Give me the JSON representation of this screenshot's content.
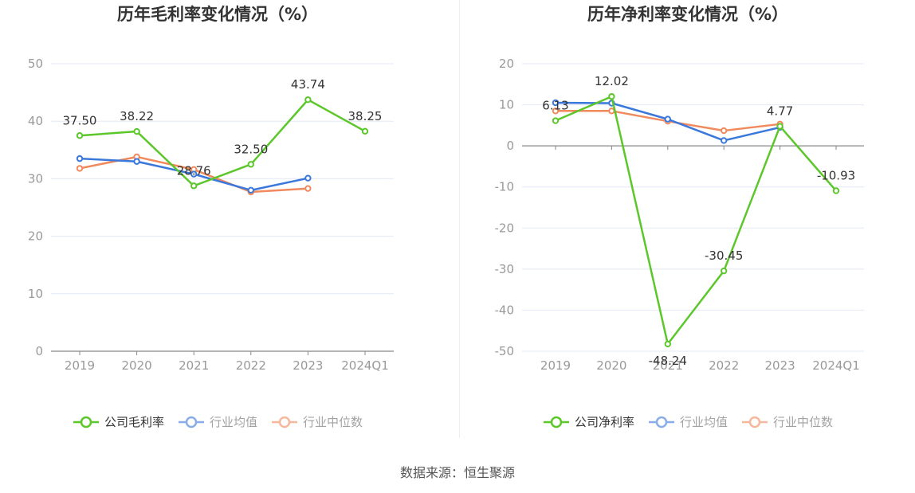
{
  "colors": {
    "company": "#5cc72b",
    "industry_avg": "#3b78dc",
    "industry_median": "#f08a5d",
    "grid": "#e3e8f5",
    "axis": "#888888",
    "tick_text": "#999999",
    "label_text": "#333333"
  },
  "source": "数据来源：恒生聚源",
  "chart_data": [
    {
      "type": "line",
      "title": "历年毛利率变化情况（%）",
      "categories": [
        "2019",
        "2020",
        "2021",
        "2022",
        "2023",
        "2024Q1"
      ],
      "ylim": [
        0,
        50
      ],
      "yticks": [
        0,
        10,
        20,
        30,
        40,
        50
      ],
      "grid": true,
      "legend_position": "bottom",
      "series": [
        {
          "name": "公司毛利率",
          "values": [
            37.5,
            38.22,
            28.76,
            32.5,
            43.74,
            38.25
          ],
          "labels": [
            "37.50",
            "38.22",
            "28.76",
            "32.50",
            "43.74",
            "38.25"
          ]
        },
        {
          "name": "行业均值",
          "values": [
            33.5,
            33.0,
            30.8,
            28.0,
            30.1,
            null
          ]
        },
        {
          "name": "行业中位数",
          "values": [
            31.8,
            33.8,
            31.6,
            27.7,
            28.3,
            null
          ]
        }
      ]
    },
    {
      "type": "line",
      "title": "历年净利率变化情况（%）",
      "categories": [
        "2019",
        "2020",
        "2021",
        "2022",
        "2023",
        "2024Q1"
      ],
      "ylim": [
        -50,
        20
      ],
      "yticks": [
        -50,
        -40,
        -30,
        -20,
        -10,
        0,
        10,
        20
      ],
      "grid": true,
      "legend_position": "bottom",
      "series": [
        {
          "name": "公司净利率",
          "values": [
            6.13,
            12.02,
            -48.24,
            -30.45,
            4.77,
            -10.93
          ],
          "labels": [
            "6.13",
            "12.02",
            "-48.24",
            "-30.45",
            "4.77",
            "-10.93"
          ]
        },
        {
          "name": "行业均值",
          "values": [
            10.5,
            10.4,
            6.5,
            1.3,
            4.5,
            null
          ]
        },
        {
          "name": "行业中位数",
          "values": [
            8.5,
            8.5,
            6.0,
            3.7,
            5.3,
            null
          ]
        }
      ]
    }
  ]
}
